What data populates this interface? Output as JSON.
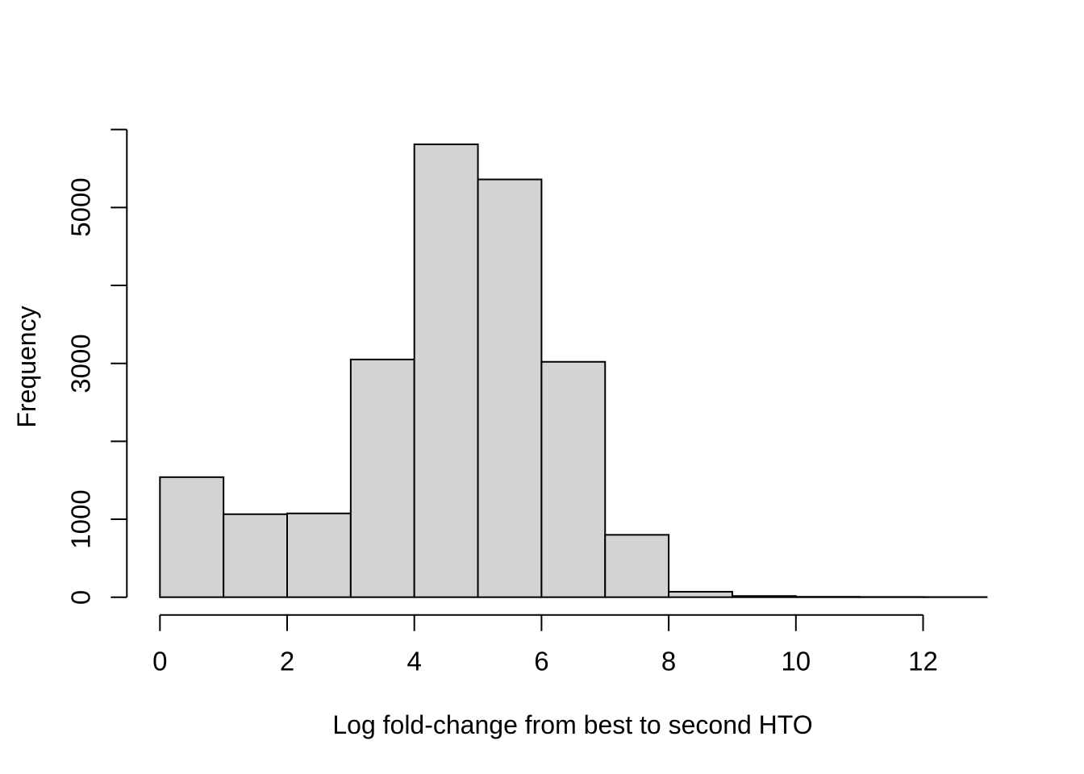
{
  "figure": {
    "background": "#ffffff",
    "bar_fill": "#d3d3d3",
    "bar_stroke": "#000000",
    "axis_color": "#000000",
    "text_color": "#000000"
  },
  "chart_data": {
    "type": "bar",
    "subtype": "histogram",
    "title": "",
    "xlabel": "Log fold-change from best to second HTO",
    "ylabel": "Frequency",
    "bin_start": 0,
    "bin_width": 1,
    "bin_edges": [
      0,
      1,
      2,
      3,
      4,
      5,
      6,
      7,
      8,
      9,
      10,
      11,
      12,
      13
    ],
    "values": [
      1540,
      1065,
      1075,
      3050,
      5810,
      5360,
      3020,
      800,
      70,
      15,
      5,
      3,
      2
    ],
    "xlim": [
      0,
      13
    ],
    "ylim": [
      0,
      6000
    ],
    "grid": false,
    "legend": null,
    "x_ticks": [
      {
        "value": 0,
        "label": "0"
      },
      {
        "value": 2,
        "label": "2"
      },
      {
        "value": 4,
        "label": "4"
      },
      {
        "value": 6,
        "label": "6"
      },
      {
        "value": 8,
        "label": "8"
      },
      {
        "value": 10,
        "label": "10"
      },
      {
        "value": 12,
        "label": "12"
      }
    ],
    "y_ticks": [
      {
        "value": 0,
        "label": "0"
      },
      {
        "value": 1000,
        "label": "1000"
      },
      {
        "value": 2000,
        "label": ""
      },
      {
        "value": 3000,
        "label": "3000"
      },
      {
        "value": 4000,
        "label": ""
      },
      {
        "value": 5000,
        "label": "5000"
      },
      {
        "value": 6000,
        "label": ""
      }
    ]
  }
}
